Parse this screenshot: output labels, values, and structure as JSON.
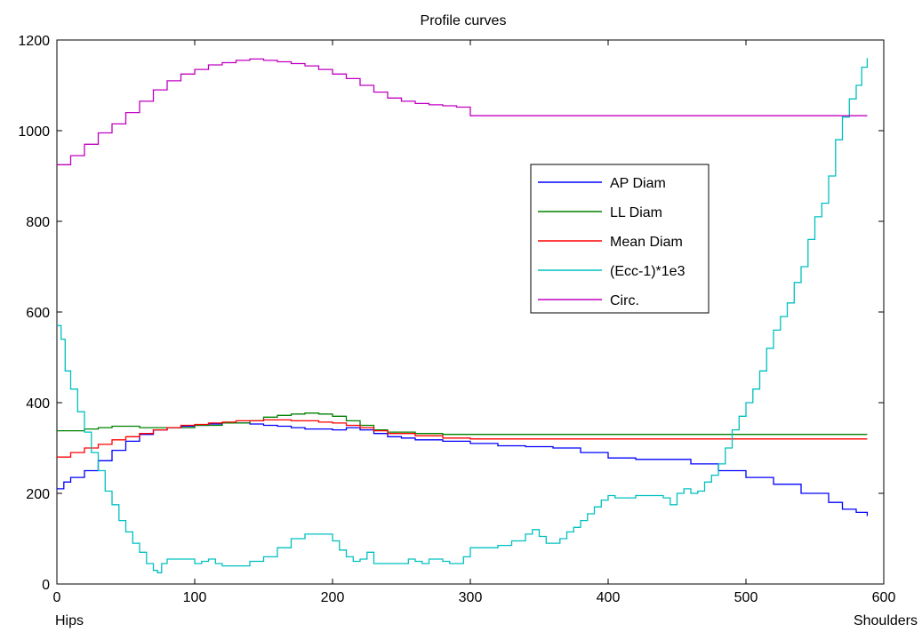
{
  "chart_data": {
    "type": "line",
    "title": "Profile curves",
    "xlabel_left": "Hips",
    "xlabel_right": "Shoulders",
    "xlim": [
      0,
      600
    ],
    "ylim": [
      0,
      1200
    ],
    "xticks": [
      0,
      100,
      200,
      300,
      400,
      500,
      600
    ],
    "yticks": [
      0,
      200,
      400,
      600,
      800,
      1000,
      1200
    ],
    "grid": false,
    "legend_placement": "upper-right-center",
    "series": [
      {
        "name": "AP Diam",
        "color": "#0000ff",
        "x": [
          0,
          5,
          10,
          20,
          30,
          40,
          50,
          60,
          70,
          80,
          90,
          100,
          110,
          120,
          130,
          140,
          150,
          160,
          170,
          180,
          190,
          200,
          210,
          220,
          230,
          240,
          250,
          260,
          280,
          300,
          320,
          340,
          360,
          380,
          400,
          420,
          440,
          450,
          460,
          480,
          500,
          520,
          540,
          560,
          570,
          580,
          588
        ],
        "values": [
          210,
          225,
          235,
          250,
          272,
          295,
          315,
          330,
          340,
          345,
          348,
          350,
          353,
          355,
          355,
          353,
          350,
          348,
          345,
          342,
          342,
          340,
          345,
          340,
          332,
          325,
          322,
          318,
          315,
          310,
          305,
          303,
          300,
          290,
          278,
          275,
          275,
          275,
          265,
          250,
          235,
          220,
          200,
          180,
          165,
          158,
          150
        ]
      },
      {
        "name": "LL Diam",
        "color": "#008000",
        "x": [
          0,
          10,
          20,
          30,
          40,
          60,
          80,
          100,
          120,
          140,
          150,
          160,
          170,
          180,
          190,
          200,
          210,
          220,
          230,
          240,
          260,
          280,
          300,
          350,
          400,
          450,
          500,
          550,
          588
        ],
        "values": [
          338,
          338,
          342,
          345,
          348,
          345,
          345,
          350,
          355,
          360,
          368,
          372,
          375,
          377,
          375,
          370,
          360,
          350,
          340,
          335,
          332,
          330,
          330,
          330,
          330,
          330,
          330,
          330,
          330
        ]
      },
      {
        "name": "Mean Diam",
        "color": "#ff0000",
        "x": [
          0,
          10,
          20,
          30,
          40,
          50,
          60,
          70,
          80,
          90,
          100,
          110,
          120,
          130,
          140,
          150,
          160,
          170,
          180,
          190,
          200,
          210,
          220,
          230,
          240,
          260,
          280,
          300,
          350,
          400,
          450,
          500,
          550,
          588
        ],
        "values": [
          280,
          290,
          300,
          308,
          318,
          325,
          332,
          340,
          345,
          350,
          352,
          355,
          357,
          360,
          360,
          362,
          362,
          360,
          360,
          357,
          355,
          350,
          345,
          338,
          332,
          327,
          322,
          320,
          320,
          320,
          320,
          320,
          320,
          320
        ]
      },
      {
        "name": "(Ecc-1)*1e3",
        "color": "#00c0c0",
        "x": [
          0,
          3,
          6,
          10,
          15,
          20,
          25,
          30,
          35,
          40,
          45,
          50,
          55,
          60,
          65,
          70,
          73,
          76,
          80,
          90,
          100,
          105,
          110,
          115,
          120,
          130,
          140,
          150,
          160,
          170,
          180,
          190,
          200,
          205,
          210,
          215,
          220,
          225,
          230,
          240,
          250,
          255,
          260,
          265,
          270,
          275,
          280,
          285,
          290,
          295,
          300,
          310,
          320,
          330,
          340,
          345,
          350,
          355,
          360,
          365,
          370,
          375,
          380,
          385,
          390,
          395,
          400,
          405,
          410,
          420,
          430,
          440,
          445,
          450,
          455,
          460,
          465,
          470,
          475,
          480,
          485,
          490,
          495,
          500,
          505,
          510,
          515,
          520,
          525,
          530,
          535,
          540,
          545,
          550,
          555,
          560,
          565,
          570,
          575,
          580,
          584,
          588
        ],
        "values": [
          570,
          540,
          470,
          430,
          380,
          335,
          290,
          250,
          205,
          175,
          140,
          115,
          90,
          70,
          45,
          30,
          25,
          45,
          55,
          55,
          45,
          50,
          55,
          45,
          40,
          40,
          50,
          60,
          80,
          100,
          110,
          110,
          95,
          75,
          60,
          50,
          55,
          70,
          45,
          45,
          45,
          55,
          50,
          45,
          55,
          55,
          50,
          45,
          45,
          60,
          80,
          80,
          85,
          95,
          110,
          120,
          105,
          90,
          90,
          100,
          115,
          125,
          140,
          155,
          170,
          185,
          195,
          190,
          190,
          195,
          195,
          190,
          175,
          200,
          210,
          200,
          205,
          225,
          240,
          265,
          300,
          340,
          370,
          400,
          430,
          470,
          520,
          560,
          590,
          620,
          665,
          700,
          760,
          810,
          840,
          900,
          980,
          1030,
          1070,
          1100,
          1140,
          1160
        ]
      },
      {
        "name": "Circ.",
        "color": "#c000c0",
        "x": [
          0,
          10,
          20,
          30,
          40,
          50,
          60,
          70,
          80,
          90,
          100,
          110,
          120,
          130,
          140,
          150,
          160,
          170,
          180,
          190,
          200,
          210,
          220,
          230,
          240,
          250,
          260,
          270,
          280,
          290,
          300,
          350,
          400,
          450,
          500,
          550,
          588
        ],
        "values": [
          925,
          945,
          970,
          995,
          1015,
          1040,
          1065,
          1090,
          1110,
          1125,
          1135,
          1145,
          1150,
          1155,
          1158,
          1155,
          1152,
          1148,
          1143,
          1135,
          1125,
          1115,
          1100,
          1085,
          1072,
          1065,
          1060,
          1057,
          1055,
          1052,
          1033,
          1033,
          1033,
          1033,
          1033,
          1033,
          1033
        ]
      }
    ]
  }
}
